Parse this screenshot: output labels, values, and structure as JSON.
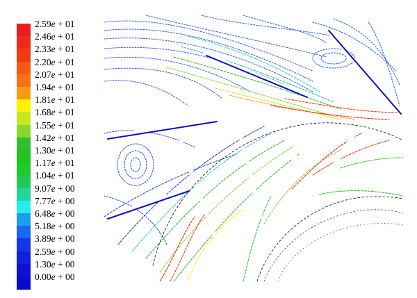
{
  "legend": {
    "levels": [
      {
        "mant": "2.59",
        "exp": "+ 01",
        "color": "#ee1c1c"
      },
      {
        "mant": "2.46",
        "exp": "+ 01",
        "color": "#ef2b17"
      },
      {
        "mant": "2.33",
        "exp": "+ 01",
        "color": "#f03a14"
      },
      {
        "mant": "2.20",
        "exp": "+ 01",
        "color": "#f25a12"
      },
      {
        "mant": "2.07",
        "exp": "+ 01",
        "color": "#f4731a"
      },
      {
        "mant": "1.94",
        "exp": "+ 01",
        "color": "#f89b12"
      },
      {
        "mant": "1.81",
        "exp": "+ 01",
        "color": "#fff200"
      },
      {
        "mant": "1.68",
        "exp": "+ 01",
        "color": "#c6e81c"
      },
      {
        "mant": "1.55",
        "exp": "+ 01",
        "color": "#8cd630"
      },
      {
        "mant": "1.42",
        "exp": "+ 01",
        "color": "#2fbf2f"
      },
      {
        "mant": "1.30",
        "exp": "+ 01",
        "color": "#22c322"
      },
      {
        "mant": "1.17",
        "exp": "+ 01",
        "color": "#1fc92b"
      },
      {
        "mant": "1.04",
        "exp": "+ 01",
        "color": "#20c95a"
      },
      {
        "mant": "9.07",
        "exp": "+ 00",
        "color": "#22d4a0"
      },
      {
        "mant": "7.77",
        "exp": "+ 00",
        "color": "#27ecec"
      },
      {
        "mant": "6.48",
        "exp": "+ 00",
        "color": "#1a9ff0"
      },
      {
        "mant": "5.18",
        "exp": "+ 00",
        "color": "#1a66f0"
      },
      {
        "mant": "3.89",
        "exp": "+ 00",
        "color": "#1436e6"
      },
      {
        "mant": "2.59",
        "exp": "+ 00",
        "color": "#1420e0"
      },
      {
        "mant": "1.30",
        "exp": "+ 00",
        "color": "#1010d8"
      },
      {
        "mant": "0.00",
        "exp": "+ 00",
        "color": "#0b0bcc"
      }
    ]
  }
}
